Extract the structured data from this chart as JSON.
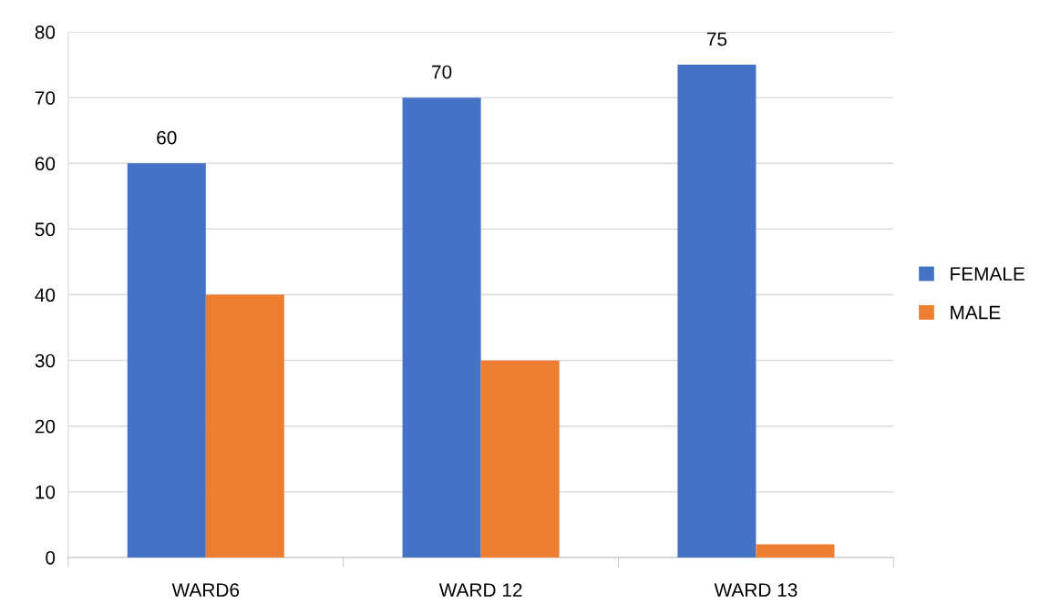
{
  "chart_data": {
    "type": "bar",
    "categories": [
      "WARD6",
      "WARD 12",
      "WARD 13"
    ],
    "series": [
      {
        "name": "FEMALE",
        "color": "#4472c4",
        "values": [
          60,
          70,
          75
        ],
        "value_labels": [
          "60",
          "70",
          "75"
        ]
      },
      {
        "name": "MALE",
        "color": "#ed7d31",
        "values": [
          40,
          30,
          2
        ]
      }
    ],
    "ylim": [
      0,
      80
    ],
    "yticks": [
      0,
      10,
      20,
      30,
      40,
      50,
      60,
      70,
      80
    ],
    "grid": "y",
    "legend": "right"
  }
}
